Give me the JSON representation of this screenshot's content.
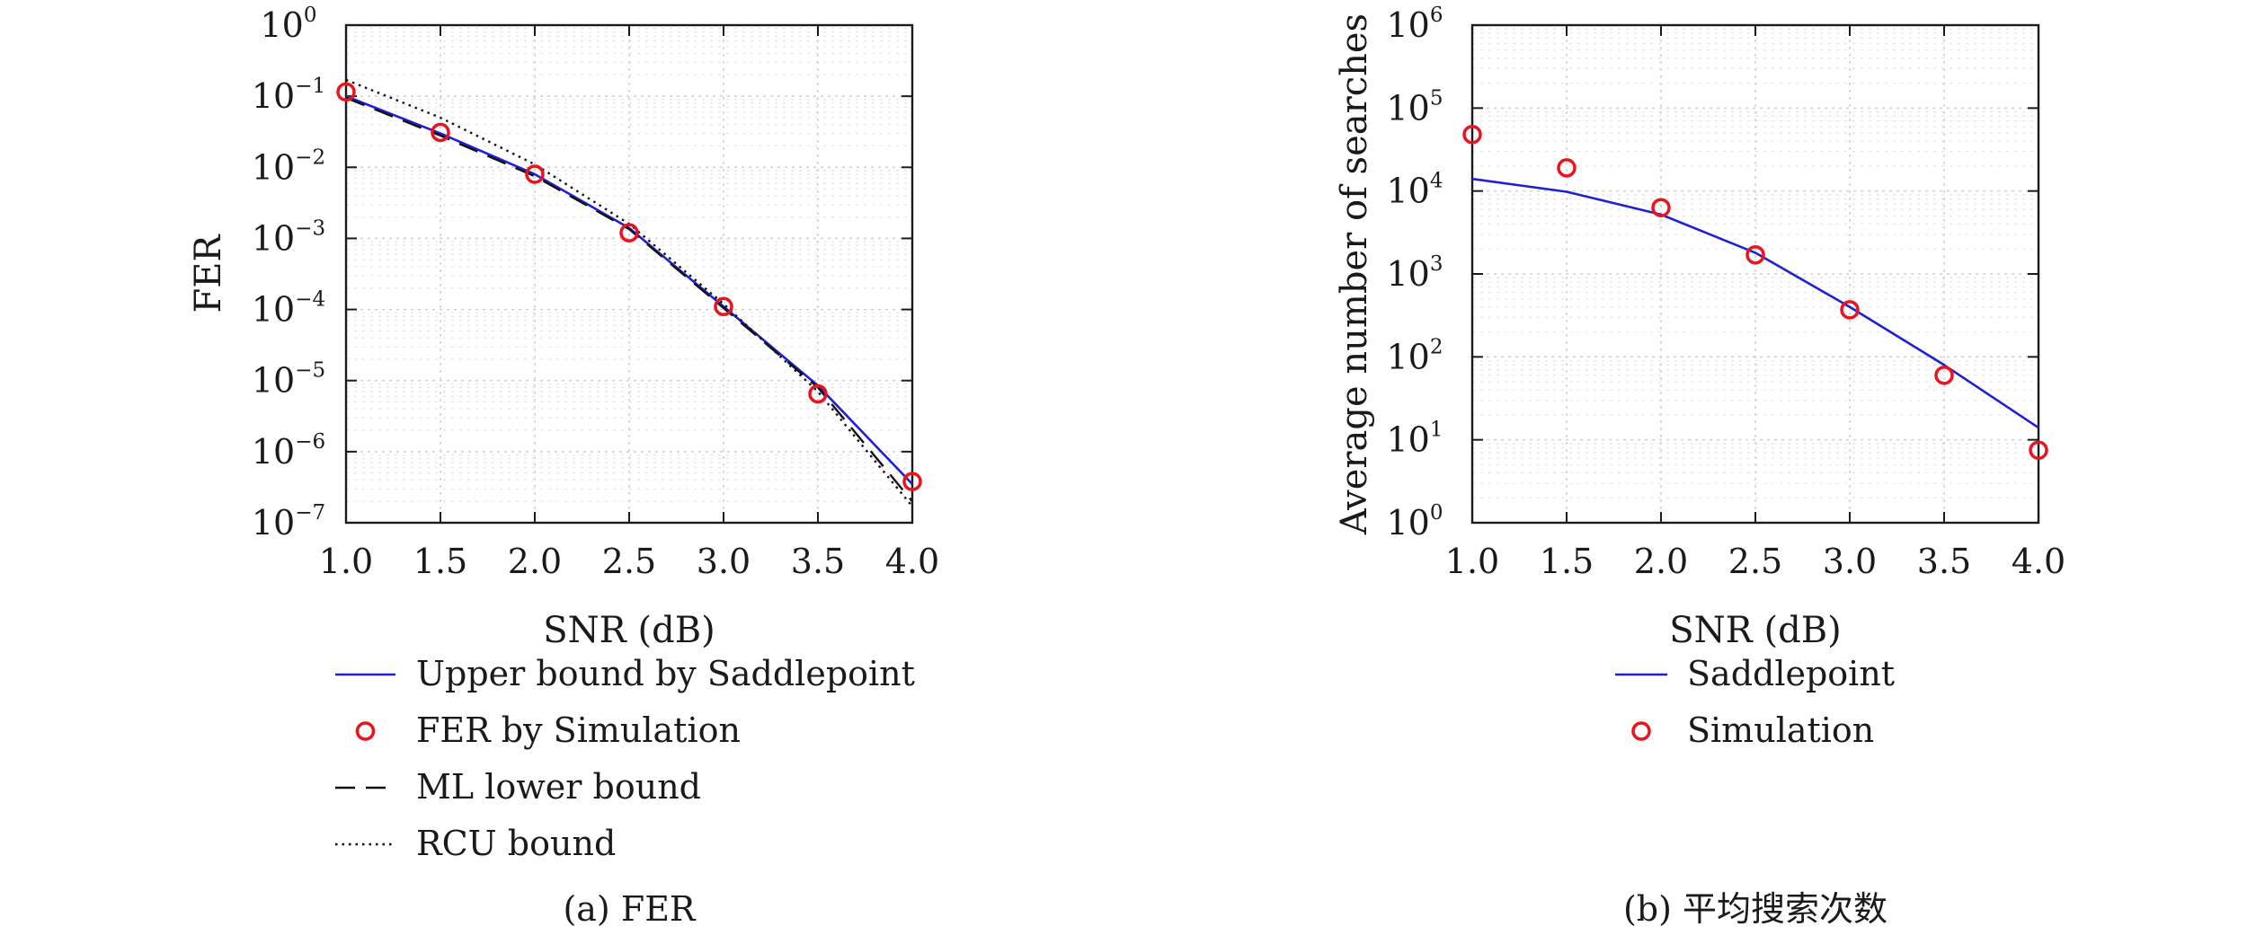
{
  "chart_data": [
    {
      "type": "line",
      "caption": "(a) FER",
      "xlabel": "SNR (dB)",
      "ylabel": "FER",
      "x": [
        1.0,
        1.5,
        2.0,
        2.5,
        3.0,
        3.5,
        4.0
      ],
      "x_tick_labels": [
        "1.0",
        "1.5",
        "2.0",
        "2.5",
        "3.0",
        "3.5",
        "4.0"
      ],
      "xlim": [
        1.0,
        4.0
      ],
      "yscale": "log",
      "ylim": [
        1e-07,
        1
      ],
      "y_tick_labels": [
        {
          "base": "10",
          "exp": "0"
        },
        {
          "base": "10",
          "exp": "−1"
        },
        {
          "base": "10",
          "exp": "−2"
        },
        {
          "base": "10",
          "exp": "−3"
        },
        {
          "base": "10",
          "exp": "−4"
        },
        {
          "base": "10",
          "exp": "−5"
        },
        {
          "base": "10",
          "exp": "−6"
        },
        {
          "base": "10",
          "exp": "−7"
        }
      ],
      "grid": true,
      "legend_placement": "below",
      "series": [
        {
          "name": "Upper bound by Saddlepoint",
          "style": "solid",
          "color": "#1f1fd6",
          "values": [
            0.1,
            0.03,
            0.008,
            0.0014,
            0.00011,
            8.5e-06,
            3.5e-07
          ]
        },
        {
          "name": "FER by Simulation",
          "style": "circle",
          "color": "#e8141e",
          "values": [
            0.115,
            0.031,
            0.008,
            0.0012,
            0.00011,
            6.5e-06,
            3.8e-07
          ]
        },
        {
          "name": "ML lower bound",
          "style": "dashed",
          "color": "#111111",
          "values": [
            0.095,
            0.028,
            0.0075,
            0.00135,
            0.000105,
            8e-06,
            2e-07
          ]
        },
        {
          "name": "RCU bound",
          "style": "dotted",
          "color": "#111111",
          "values": [
            0.17,
            0.05,
            0.011,
            0.0016,
            0.00012,
            7e-06,
            1.7e-07
          ]
        }
      ]
    },
    {
      "type": "line",
      "caption": "(b) 平均搜索次数",
      "xlabel": "SNR (dB)",
      "ylabel": "Average number of searches",
      "x": [
        1.0,
        1.5,
        2.0,
        2.5,
        3.0,
        3.5,
        4.0
      ],
      "x_tick_labels": [
        "1.0",
        "1.5",
        "2.0",
        "2.5",
        "3.0",
        "3.5",
        "4.0"
      ],
      "xlim": [
        1.0,
        4.0
      ],
      "yscale": "log",
      "ylim": [
        1,
        1000000
      ],
      "y_tick_labels": [
        {
          "base": "10",
          "exp": "6"
        },
        {
          "base": "10",
          "exp": "5"
        },
        {
          "base": "10",
          "exp": "4"
        },
        {
          "base": "10",
          "exp": "3"
        },
        {
          "base": "10",
          "exp": "2"
        },
        {
          "base": "10",
          "exp": "1"
        },
        {
          "base": "10",
          "exp": "0"
        }
      ],
      "grid": true,
      "legend_placement": "below",
      "series": [
        {
          "name": "Saddlepoint",
          "style": "solid",
          "color": "#1f1fd6",
          "values": [
            14000,
            9800,
            5200,
            1800,
            400,
            80,
            14
          ]
        },
        {
          "name": "Simulation",
          "style": "circle",
          "color": "#e8141e",
          "values": [
            48000,
            19000,
            6300,
            1700,
            370,
            60,
            7.5
          ]
        }
      ]
    }
  ]
}
